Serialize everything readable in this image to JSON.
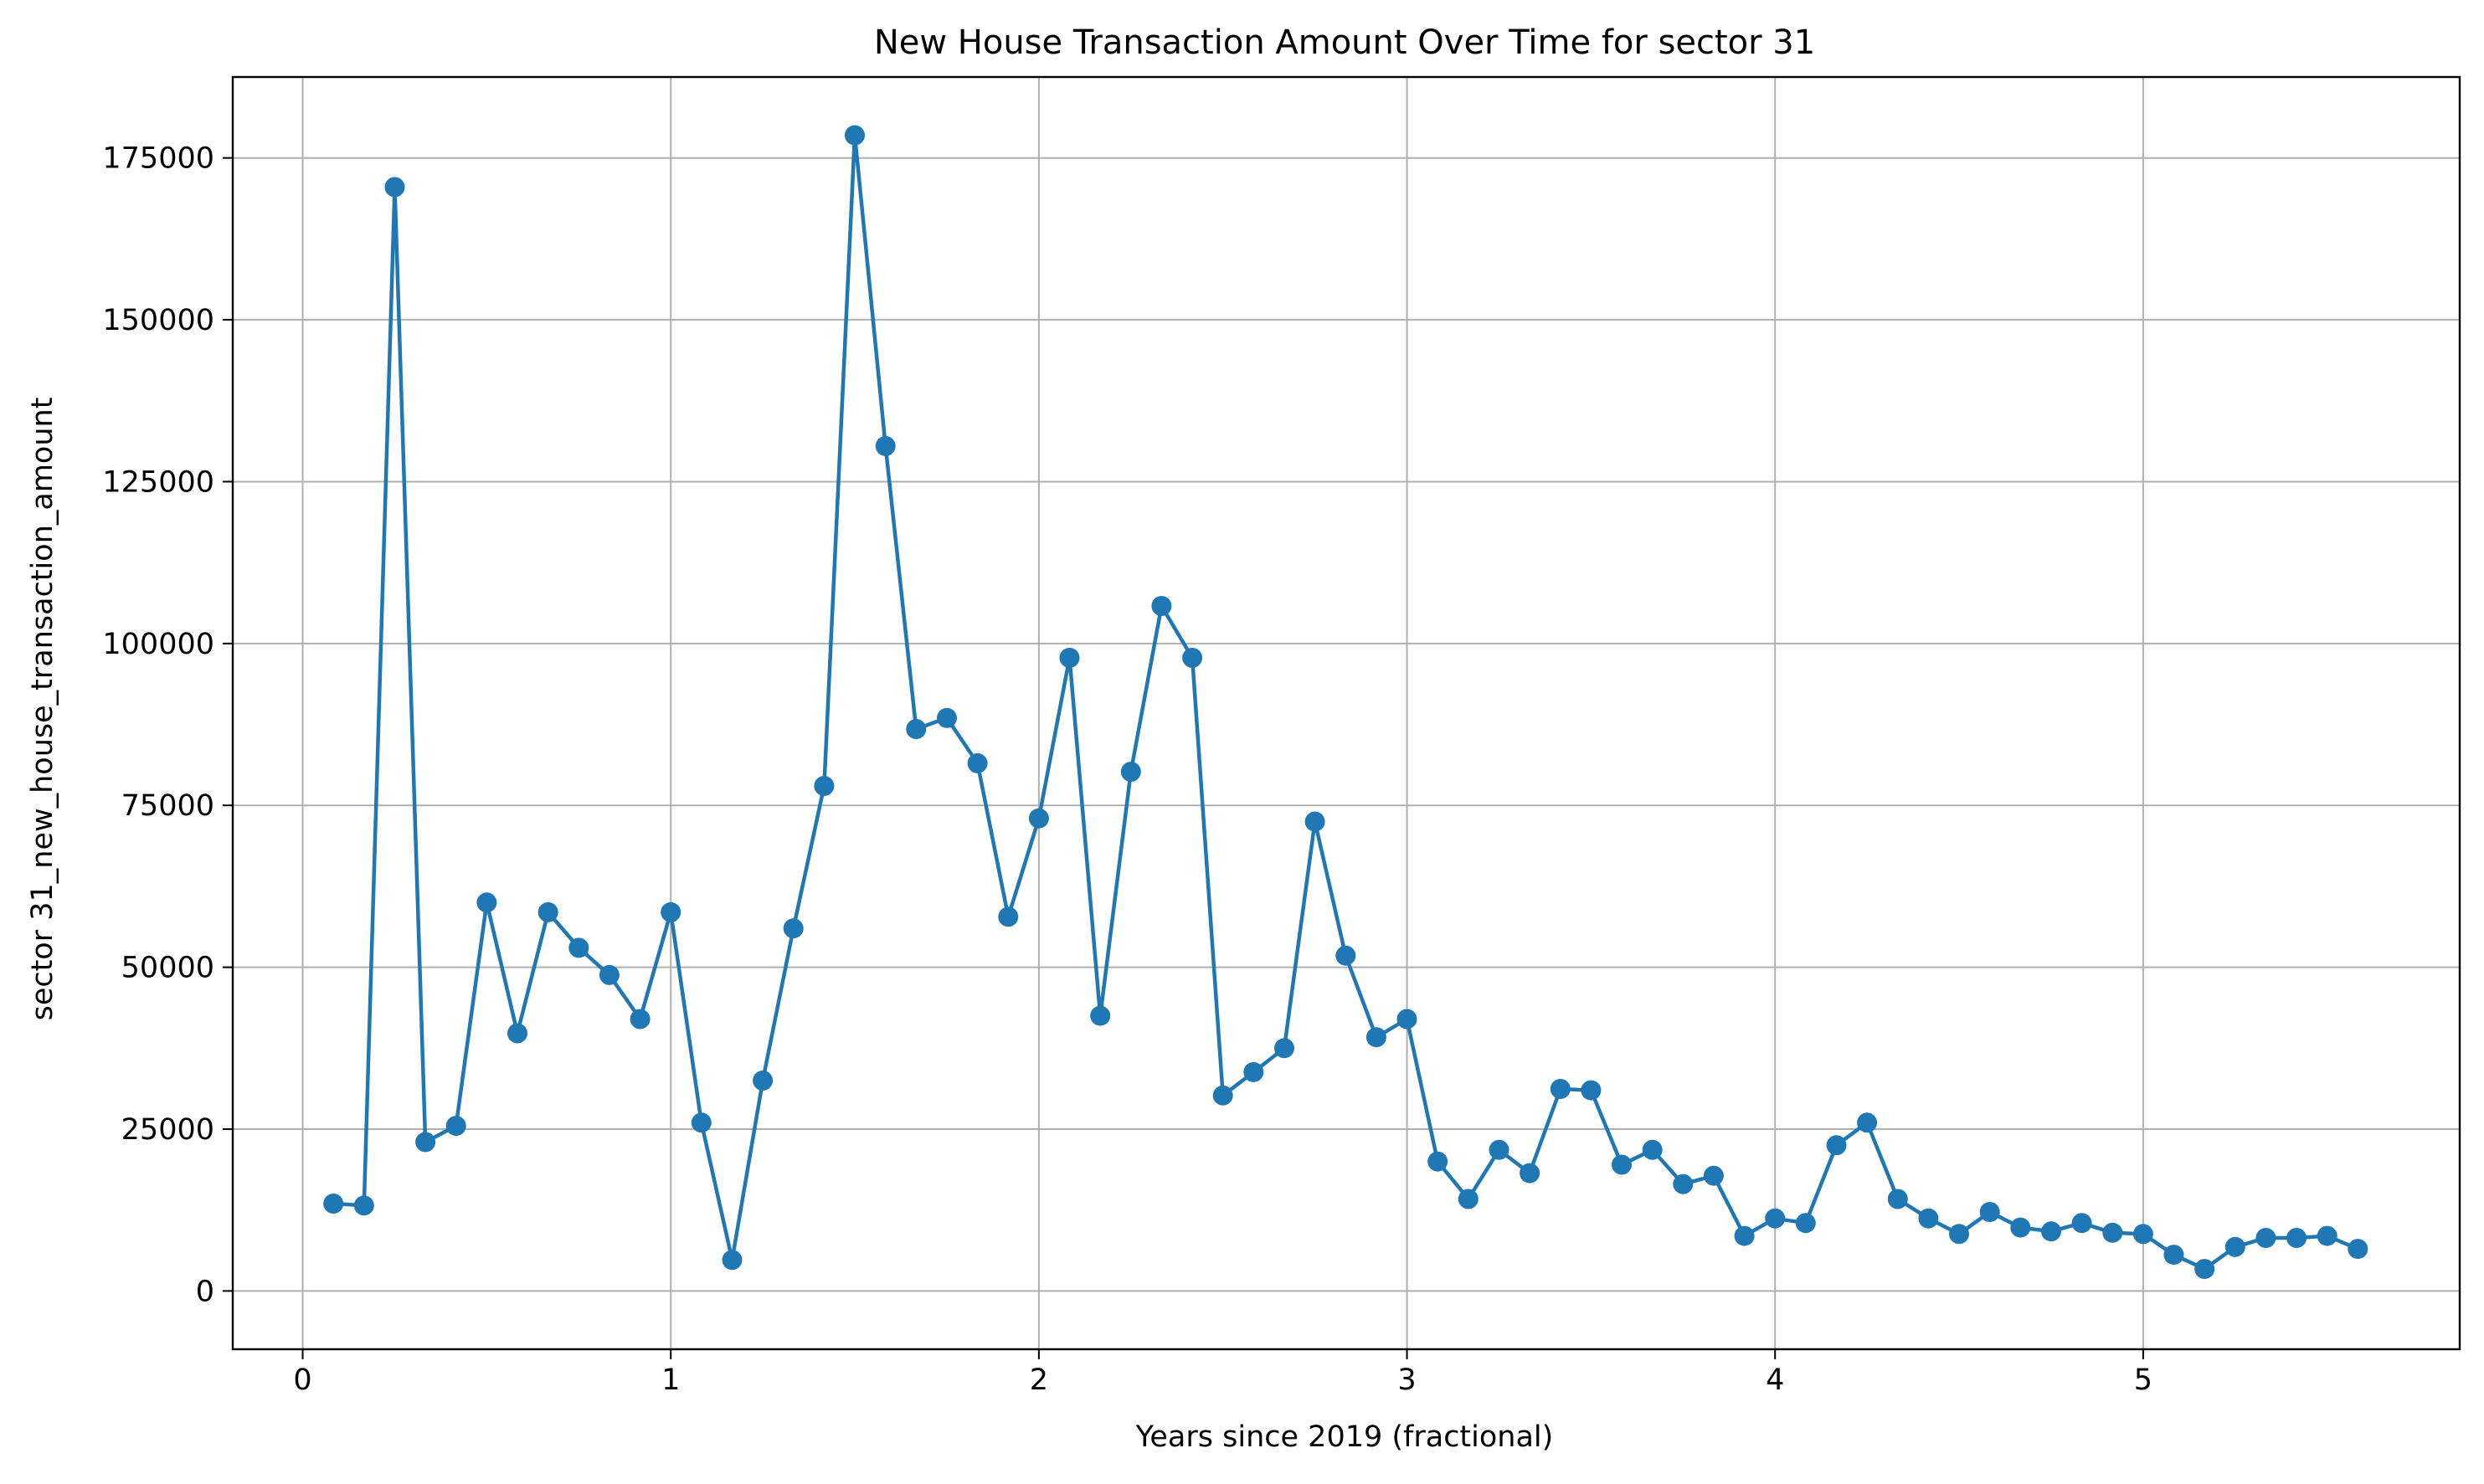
{
  "chart_data": {
    "type": "line",
    "title": "New House Transaction Amount Over Time for sector 31",
    "xlabel": "Years since 2019 (fractional)",
    "ylabel": "sector 31_new_house_transaction_amount",
    "xlim": [
      -0.19,
      5.86
    ],
    "ylim": [
      -9000,
      187500
    ],
    "x_ticks": [
      0,
      1,
      2,
      3,
      4,
      5
    ],
    "y_ticks": [
      0,
      25000,
      50000,
      75000,
      100000,
      125000,
      150000,
      175000
    ],
    "grid": true,
    "marker": "circle",
    "colors": {
      "series": "#1f77b4",
      "grid": "#b0b0b0",
      "axes": "#000000"
    },
    "series": [
      {
        "x": [
          0.0833,
          0.1667,
          0.25,
          0.3333,
          0.4167,
          0.5,
          0.5833,
          0.6667,
          0.75,
          0.8333,
          0.9167,
          1.0,
          1.0833,
          1.1667,
          1.25,
          1.3333,
          1.4167,
          1.5,
          1.5833,
          1.6667,
          1.75,
          1.8333,
          1.9167,
          2.0,
          2.0833,
          2.1667,
          2.25,
          2.3333,
          2.4167,
          2.5,
          2.5833,
          2.6667,
          2.75,
          2.8333,
          2.9167,
          3.0,
          3.0833,
          3.1667,
          3.25,
          3.3333,
          3.4167,
          3.5,
          3.5833,
          3.6667,
          3.75,
          3.8333,
          3.9167,
          4.0,
          4.0833,
          4.1667,
          4.25,
          4.3333,
          4.4167,
          4.5,
          4.5833,
          4.6667,
          4.75,
          4.8333,
          4.9167,
          5.0,
          5.0833,
          5.1667,
          5.25,
          5.3333,
          5.4167,
          5.5,
          5.5833
        ],
        "y": [
          13500,
          13200,
          170500,
          23000,
          25500,
          60000,
          39800,
          58500,
          53000,
          48800,
          42000,
          58500,
          26000,
          4800,
          32500,
          56000,
          78000,
          178500,
          130500,
          86800,
          88500,
          81500,
          57800,
          73000,
          97800,
          42500,
          80200,
          105800,
          97800,
          30200,
          33800,
          37500,
          72500,
          51800,
          39200,
          42000,
          20000,
          14200,
          21800,
          18200,
          31200,
          31000,
          19500,
          21800,
          16500,
          17800,
          8500,
          11200,
          10500,
          22500,
          26000,
          14200,
          11200,
          8800,
          12200,
          9800,
          9200,
          10500,
          9000,
          8800,
          5600,
          3400,
          6800,
          8200,
          8200,
          8500,
          6500
        ]
      }
    ]
  }
}
